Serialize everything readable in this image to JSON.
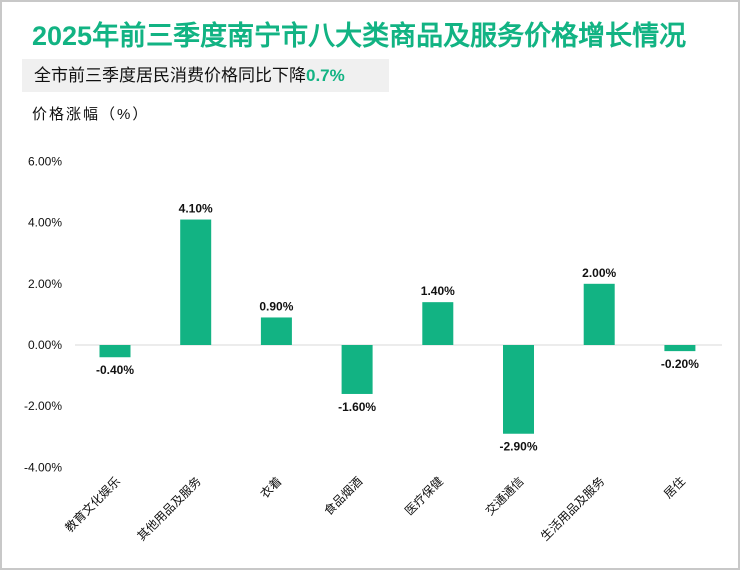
{
  "title": "2025年前三季度南宁市八大类商品及服务价格增长情况",
  "subtitle": {
    "text": "全市前三季度居民消费价格同比下降",
    "highlight": "0.7%"
  },
  "colors": {
    "accent": "#12b383",
    "bar": "#12b383"
  },
  "chart_data": {
    "type": "bar",
    "title": "2025年前三季度南宁市八大类商品及服务价格增长情况",
    "ylabel": "价格涨幅（%）",
    "categories": [
      "教育文化娱乐",
      "其他用品及服务",
      "衣着",
      "食品烟酒",
      "医疗保健",
      "交通通信",
      "生活用品及服务",
      "居住"
    ],
    "values": [
      -0.4,
      4.1,
      0.9,
      -1.6,
      1.4,
      -2.9,
      2.0,
      -0.2
    ],
    "value_labels": [
      "-0.40%",
      "4.10%",
      "0.90%",
      "-1.60%",
      "1.40%",
      "-2.90%",
      "2.00%",
      "-0.20%"
    ],
    "yticks": [
      "6.00%",
      "4.00%",
      "2.00%",
      "0.00%",
      "-2.00%",
      "-4.00%"
    ],
    "ytick_values": [
      6,
      4,
      2,
      0,
      -2,
      -4
    ],
    "ylim": [
      -4,
      6
    ],
    "grid": false
  }
}
